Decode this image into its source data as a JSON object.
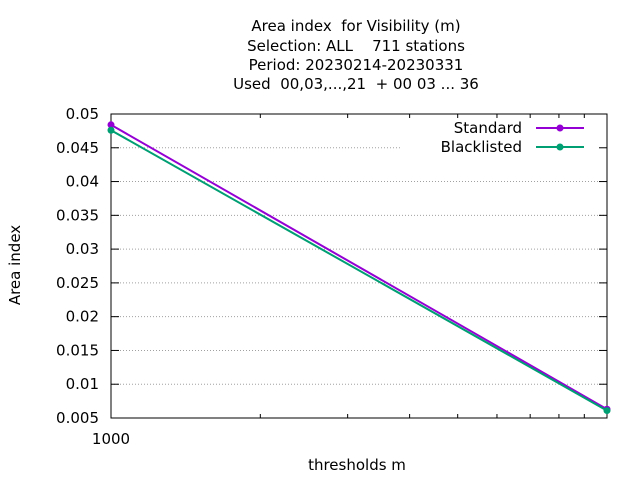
{
  "chart_data": {
    "type": "line",
    "title_lines": [
      "Area index  for Visibility (m)",
      "Selection: ALL    711 stations",
      "Period: 20230214-20230331",
      "Used  00,03,...,21  + 00 03 ... 36"
    ],
    "xlabel": "thresholds m",
    "ylabel": "Area index",
    "x_scale": "log",
    "x": [
      1000,
      10000
    ],
    "x_tick_labels": [
      "1000"
    ],
    "ylim": [
      0.005,
      0.05
    ],
    "y_ticks": [
      "0.005",
      "0.01",
      "0.015",
      "0.02",
      "0.025",
      "0.03",
      "0.035",
      "0.04",
      "0.045",
      "0.05"
    ],
    "grid": "horizontal dotted",
    "legend_position": "top-right",
    "series": [
      {
        "name": "Standard",
        "color": "#9400d3",
        "values": [
          0.0484,
          0.0063
        ]
      },
      {
        "name": "Blacklisted",
        "color": "#009e73",
        "values": [
          0.0476,
          0.0061
        ]
      }
    ]
  }
}
